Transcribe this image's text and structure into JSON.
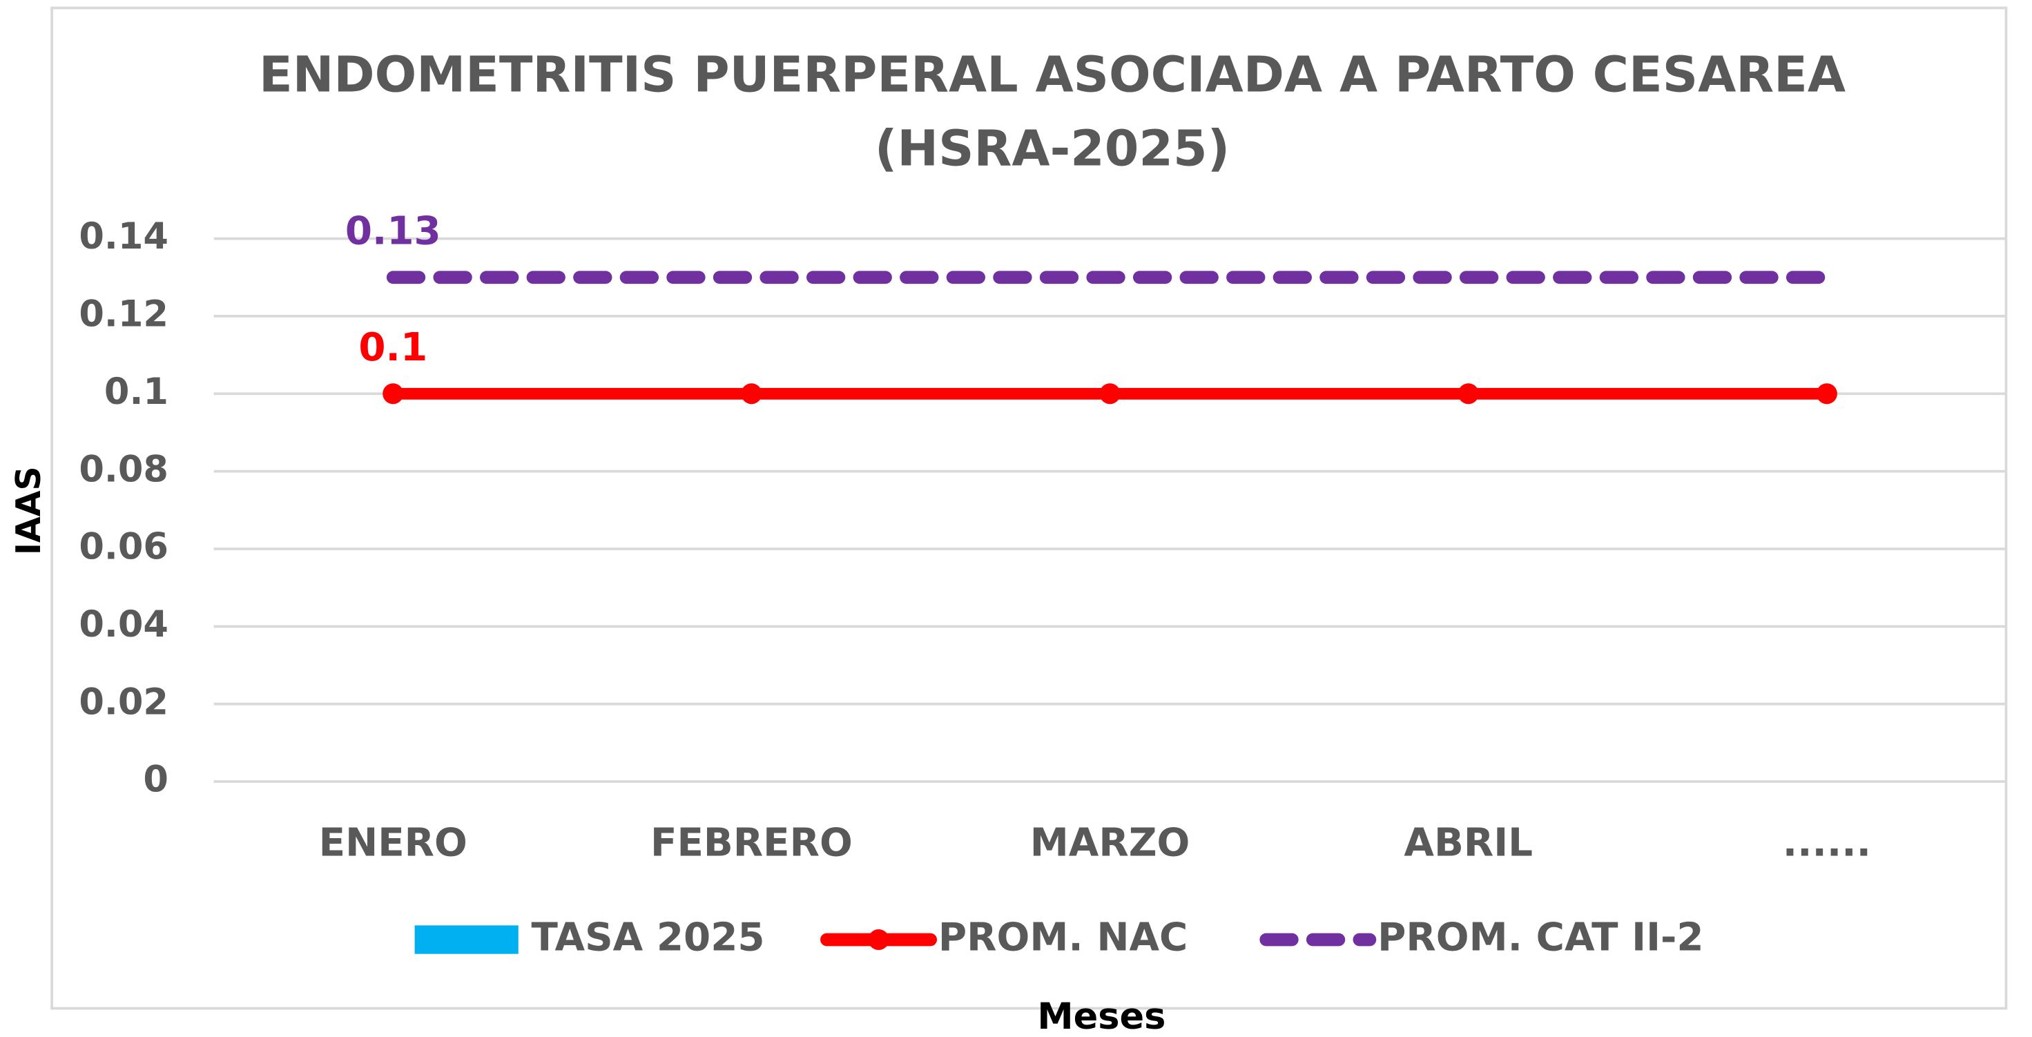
{
  "chart_data": {
    "type": "line",
    "title": "ENDOMETRITIS PUERPERAL ASOCIADA A PARTO CESAREA",
    "subtitle": "(HSRA-2025)",
    "x_label": "Meses",
    "y_label": "IAAS",
    "categories": [
      "ENERO",
      "FEBRERO",
      "MARZO",
      "ABRIL",
      "......"
    ],
    "series": [
      {
        "name": "TASA 2025",
        "type": "bar",
        "color": "#00b0f0",
        "values": [
          null,
          null,
          null,
          null,
          null
        ]
      },
      {
        "name": "PROM. NAC",
        "type": "line",
        "style": "solid",
        "markers": true,
        "color": "#ff0000",
        "values": [
          0.1,
          0.1,
          0.1,
          0.1,
          0.1
        ],
        "value_labels": [
          "0.1",
          null,
          null,
          null,
          null
        ]
      },
      {
        "name": "PROM. CAT II-2",
        "type": "line",
        "style": "dashed",
        "markers": false,
        "color": "#7030a0",
        "values": [
          0.13,
          0.13,
          0.13,
          0.13,
          0.13
        ],
        "value_labels": [
          "0.13",
          null,
          null,
          null,
          null
        ]
      }
    ],
    "ylim": [
      0,
      0.14
    ],
    "yticks": [
      0,
      0.02,
      0.04,
      0.06,
      0.08,
      0.1,
      0.12,
      0.14
    ],
    "grid": true,
    "legend": "bottom"
  }
}
